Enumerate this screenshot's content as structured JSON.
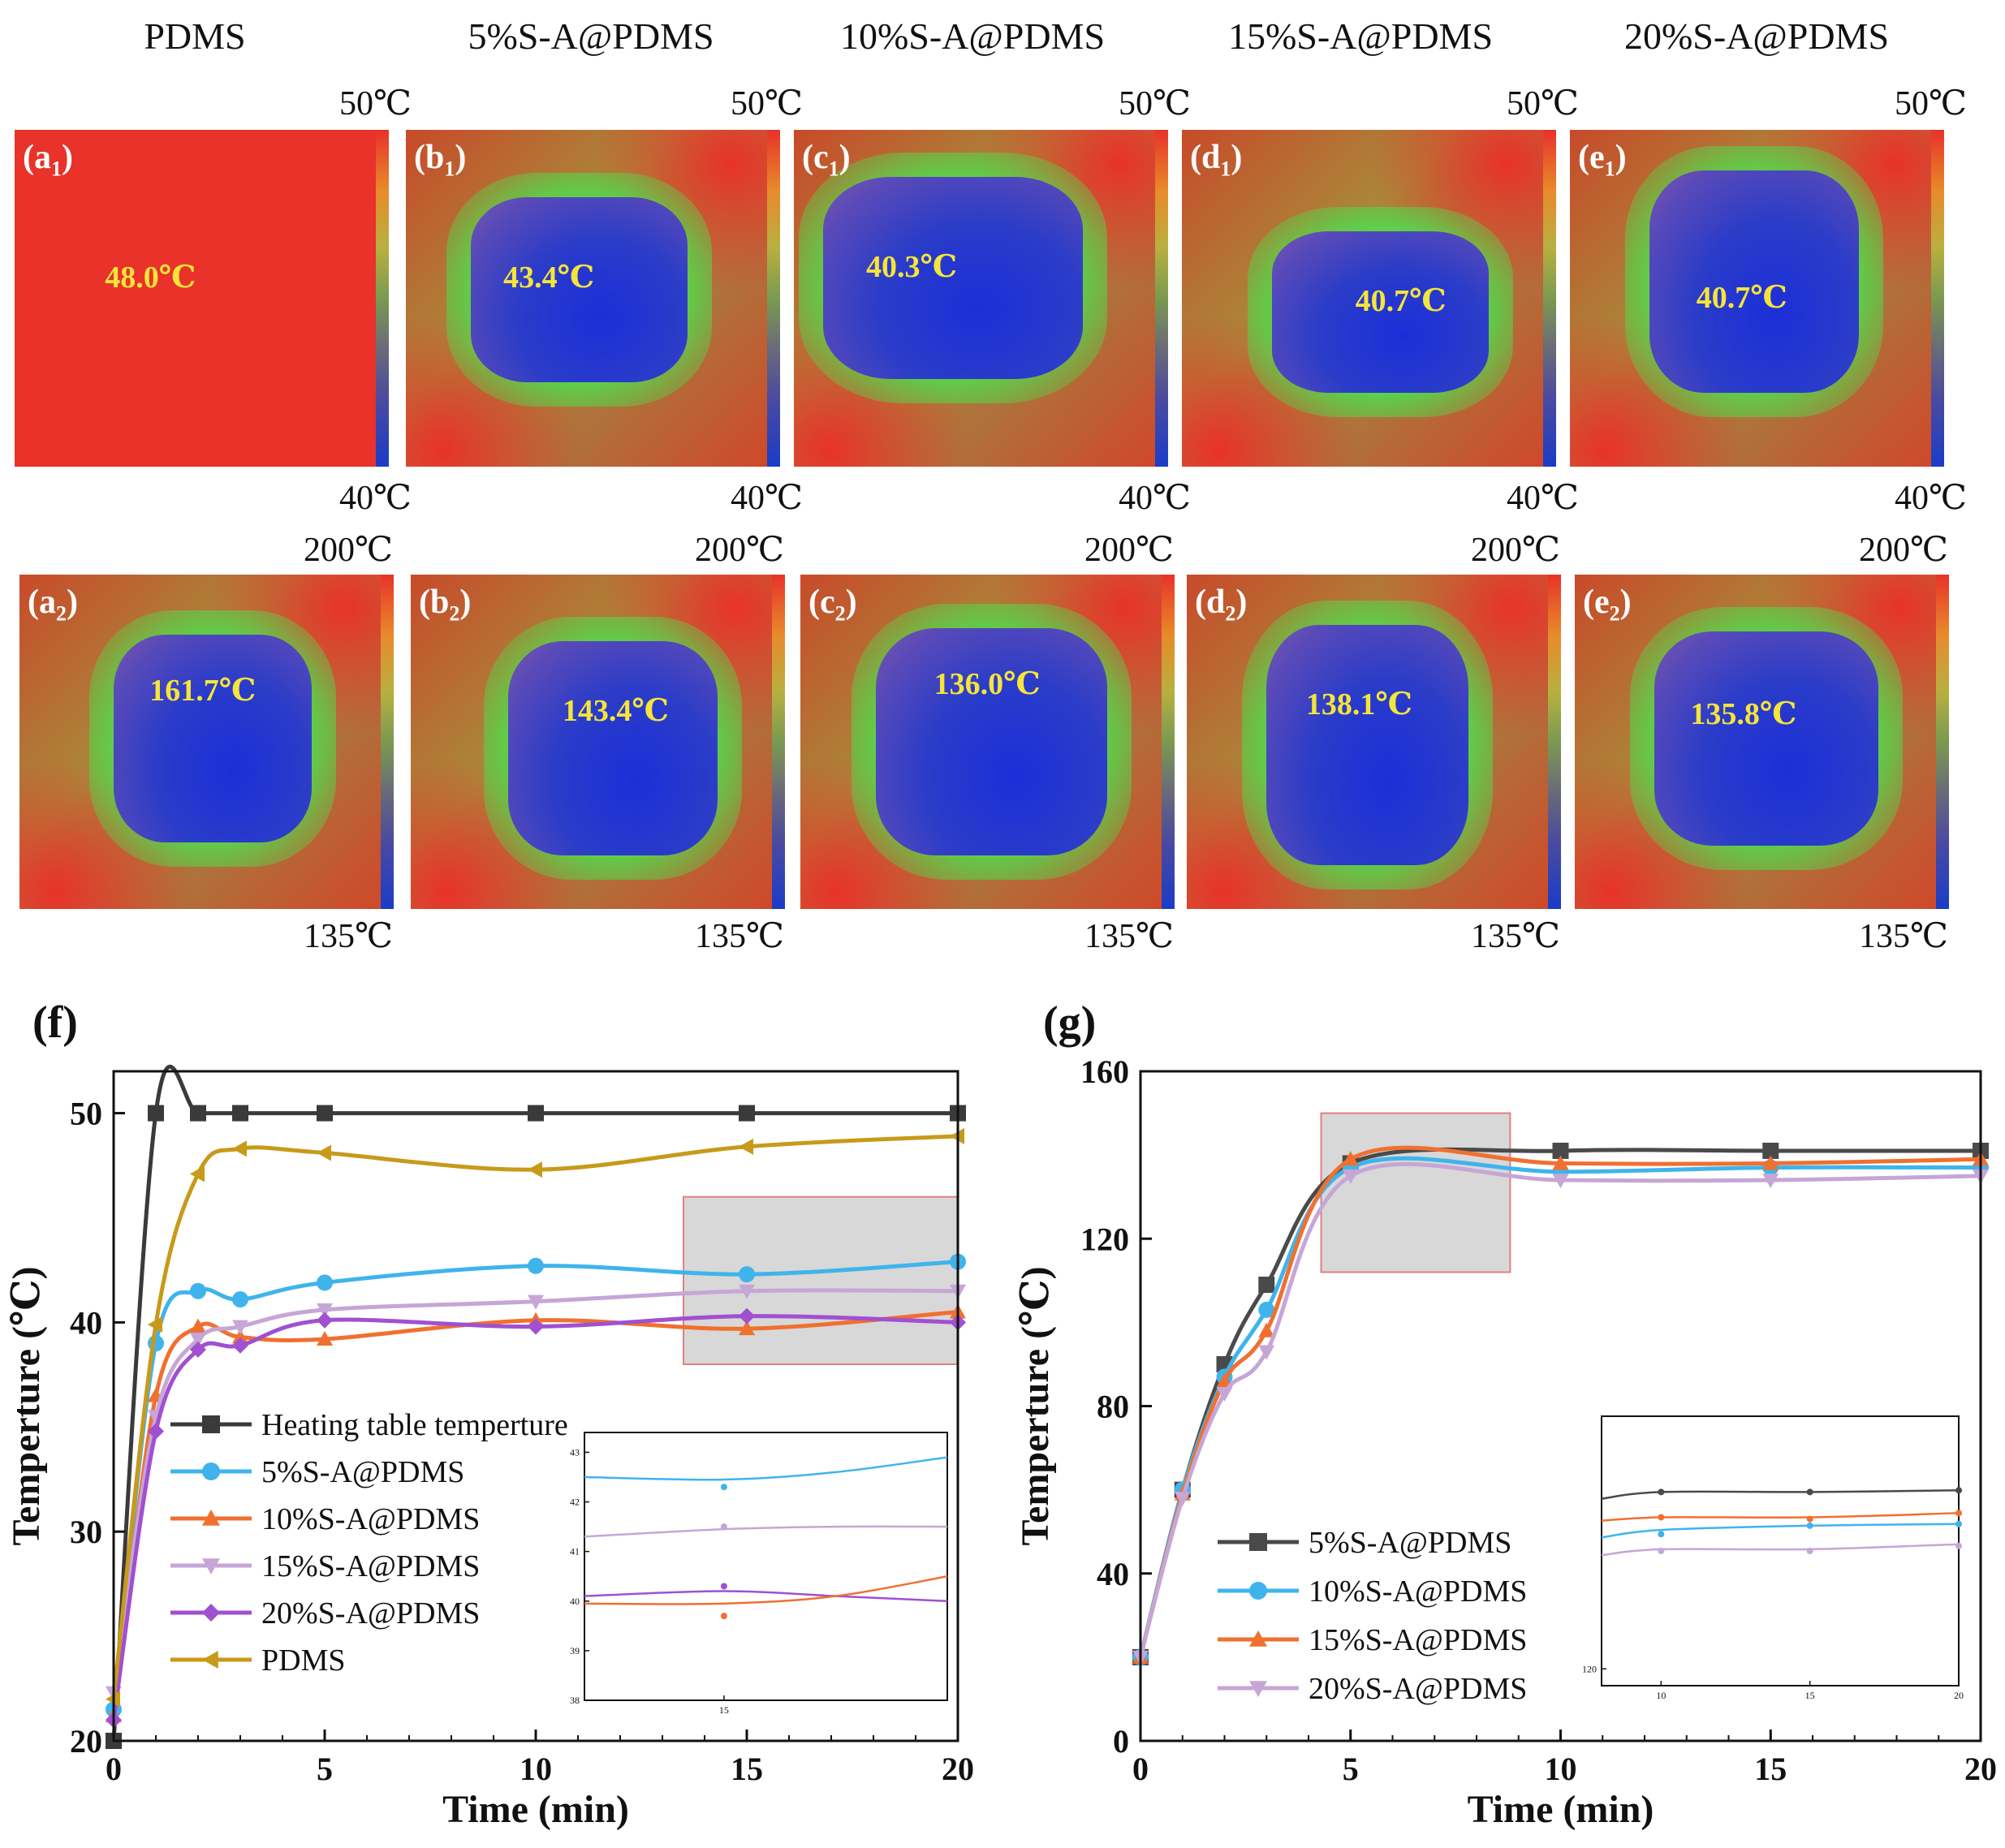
{
  "column_titles": [
    "PDMS",
    "5%S-A@PDMS",
    "10%S-A@PDMS",
    "15%S-A@PDMS",
    "20%S-A@PDMS"
  ],
  "row1": {
    "scale_max": "50℃",
    "scale_min": "40℃",
    "panels": [
      {
        "label": "a",
        "sub": "1",
        "temp": "48.0℃"
      },
      {
        "label": "b",
        "sub": "1",
        "temp": "43.4℃"
      },
      {
        "label": "c",
        "sub": "1",
        "temp": "40.3℃"
      },
      {
        "label": "d",
        "sub": "1",
        "temp": "40.7℃"
      },
      {
        "label": "e",
        "sub": "1",
        "temp": "40.7℃"
      }
    ]
  },
  "row2": {
    "scale_max": "200℃",
    "scale_min": "135℃",
    "panels": [
      {
        "label": "a",
        "sub": "2",
        "temp": "161.7℃"
      },
      {
        "label": "b",
        "sub": "2",
        "temp": "143.4℃"
      },
      {
        "label": "c",
        "sub": "2",
        "temp": "136.0℃"
      },
      {
        "label": "d",
        "sub": "2",
        "temp": "138.1℃"
      },
      {
        "label": "e",
        "sub": "2",
        "temp": "135.8℃"
      }
    ]
  },
  "colors": {
    "hot": "#e8322a",
    "ring": "#5ad24a",
    "cold": "#2a3cc8",
    "temp_text": "#f5e43a"
  },
  "chart_data": [
    {
      "id": "f",
      "panel_label": "(f)",
      "type": "line",
      "xlabel": "Time (min)",
      "ylabel": "Temperture (℃)",
      "xlim": [
        0,
        20
      ],
      "ylim": [
        20,
        52
      ],
      "xticks": [
        0,
        5,
        10,
        15,
        20
      ],
      "yticks": [
        20,
        30,
        40,
        50
      ],
      "legend_position": "bottom-left",
      "series": [
        {
          "name": "Heating table temperture",
          "color": "#3a3a3a",
          "marker": "square",
          "x": [
            0,
            1,
            2,
            3,
            5,
            10,
            15,
            20
          ],
          "y": [
            20,
            50,
            50,
            50,
            50,
            50,
            50,
            50
          ]
        },
        {
          "name": "5%S-A@PDMS",
          "color": "#3fb4ec",
          "marker": "circle",
          "x": [
            0,
            1,
            2,
            3,
            5,
            10,
            15,
            20
          ],
          "y": [
            21.5,
            39,
            41.5,
            41.1,
            41.9,
            42.7,
            42.3,
            42.9
          ]
        },
        {
          "name": "10%S-A@PDMS",
          "color": "#f07030",
          "marker": "triangle-up",
          "x": [
            0,
            1,
            2,
            3,
            5,
            10,
            15,
            20
          ],
          "y": [
            21.2,
            36.5,
            39.8,
            39.3,
            39.2,
            40.1,
            39.7,
            40.5
          ]
        },
        {
          "name": "15%S-A@PDMS",
          "color": "#c6a6d6",
          "marker": "triangle-down",
          "x": [
            0,
            1,
            2,
            3,
            5,
            10,
            15,
            20
          ],
          "y": [
            22.3,
            35.5,
            39.2,
            39.8,
            40.6,
            41.0,
            41.5,
            41.5
          ]
        },
        {
          "name": "20%S-A@PDMS",
          "color": "#a050d0",
          "marker": "diamond",
          "x": [
            0,
            1,
            2,
            3,
            5,
            10,
            15,
            20
          ],
          "y": [
            21.0,
            34.8,
            38.7,
            38.9,
            40.1,
            39.8,
            40.3,
            40.0
          ]
        },
        {
          "name": "PDMS",
          "color": "#c89a1a",
          "marker": "triangle-left",
          "x": [
            0,
            1,
            2,
            3,
            5,
            10,
            15,
            20
          ],
          "y": [
            22.0,
            39.9,
            47.1,
            48.3,
            48.1,
            47.3,
            48.4,
            48.9
          ]
        }
      ],
      "highlight_box": {
        "x": [
          13.5,
          20
        ],
        "y": [
          38,
          46
        ]
      },
      "inset": {
        "xticks": [
          15
        ],
        "yticks": [
          38,
          39,
          40,
          41,
          42,
          43
        ],
        "ylim": [
          38,
          43.4
        ],
        "xlim": [
          12.5,
          19
        ],
        "series": [
          {
            "name": "5%S-A@PDMS",
            "color": "#3fb4ec",
            "x": [
              12.5,
              15,
              17,
              19
            ],
            "y": [
              42.5,
              42.45,
              42.6,
              42.9
            ],
            "points_x": [
              15
            ],
            "points_y": [
              42.3
            ]
          },
          {
            "name": "15%S-A@PDMS",
            "color": "#c6a6d6",
            "x": [
              12.5,
              15,
              17,
              19
            ],
            "y": [
              41.3,
              41.45,
              41.5,
              41.5
            ],
            "points_x": [
              15
            ],
            "points_y": [
              41.5
            ]
          },
          {
            "name": "20%S-A@PDMS",
            "color": "#a050d0",
            "x": [
              12.5,
              15,
              17,
              19
            ],
            "y": [
              40.1,
              40.2,
              40.1,
              40.0
            ],
            "points_x": [
              15
            ],
            "points_y": [
              40.3
            ]
          },
          {
            "name": "10%S-A@PDMS",
            "color": "#f07030",
            "x": [
              12.5,
              15,
              17,
              19
            ],
            "y": [
              39.95,
              39.95,
              40.1,
              40.5
            ],
            "points_x": [
              15
            ],
            "points_y": [
              39.7
            ]
          }
        ]
      }
    },
    {
      "id": "g",
      "panel_label": "(g)",
      "type": "line",
      "xlabel": "Time (min)",
      "ylabel": "Temperture (℃)",
      "xlim": [
        0,
        20
      ],
      "ylim": [
        0,
        160
      ],
      "xticks": [
        0,
        5,
        10,
        15,
        20
      ],
      "yticks": [
        0,
        40,
        80,
        120,
        160
      ],
      "legend_position": "bottom-left",
      "series": [
        {
          "name": "5%S-A@PDMS",
          "color": "#4a4a4a",
          "marker": "square",
          "x": [
            0,
            1,
            2,
            3,
            5,
            10,
            15,
            20
          ],
          "y": [
            20,
            60,
            90,
            109,
            138,
            141,
            141,
            141
          ]
        },
        {
          "name": "10%S-A@PDMS",
          "color": "#3fb4ec",
          "marker": "circle",
          "x": [
            0,
            1,
            2,
            3,
            5,
            10,
            15,
            20
          ],
          "y": [
            20,
            60,
            87,
            103,
            137,
            136,
            137,
            137
          ]
        },
        {
          "name": "15%S-A@PDMS",
          "color": "#f07030",
          "marker": "triangle-up",
          "x": [
            0,
            1,
            2,
            3,
            5,
            10,
            15,
            20
          ],
          "y": [
            20,
            59,
            86,
            98,
            139,
            138,
            138,
            139
          ]
        },
        {
          "name": "20%S-A@PDMS",
          "color": "#c6a6d6",
          "marker": "triangle-down",
          "x": [
            0,
            1,
            2,
            3,
            5,
            10,
            15,
            20
          ],
          "y": [
            20,
            58,
            83,
            93,
            135,
            134,
            134,
            135
          ]
        }
      ],
      "highlight_box": {
        "x": [
          4.3,
          8.8
        ],
        "y": [
          112,
          150
        ]
      },
      "inset": {
        "xticks": [
          10,
          15,
          20
        ],
        "yticks": [
          120
        ],
        "ylim": [
          118,
          150
        ],
        "xlim": [
          8,
          20
        ],
        "series": [
          {
            "name": "5%S-A@PDMS",
            "color": "#4a4a4a",
            "x": [
              8,
              10,
              15,
              20
            ],
            "y": [
              140.2,
              141,
              141,
              141.2
            ],
            "points_x": [
              10,
              15,
              20
            ],
            "points_y": [
              141,
              141,
              141.2
            ]
          },
          {
            "name": "15%S-A@PDMS",
            "color": "#f07030",
            "x": [
              8,
              10,
              15,
              20
            ],
            "y": [
              137.6,
              138,
              138,
              138.5
            ],
            "points_x": [
              10,
              15,
              20
            ],
            "points_y": [
              138,
              137.8,
              138.5
            ]
          },
          {
            "name": "10%S-A@PDMS",
            "color": "#3fb4ec",
            "x": [
              8,
              10,
              15,
              20
            ],
            "y": [
              135.6,
              136.5,
              137,
              137.2
            ],
            "points_x": [
              10,
              15,
              20
            ],
            "points_y": [
              136,
              137,
              137.2
            ]
          },
          {
            "name": "20%S-A@PDMS",
            "color": "#c6a6d6",
            "x": [
              8,
              10,
              15,
              20
            ],
            "y": [
              133.5,
              134.2,
              134.2,
              134.8
            ],
            "points_x": [
              10,
              15,
              20
            ],
            "points_y": [
              134,
              134,
              134.6
            ]
          }
        ]
      }
    }
  ]
}
